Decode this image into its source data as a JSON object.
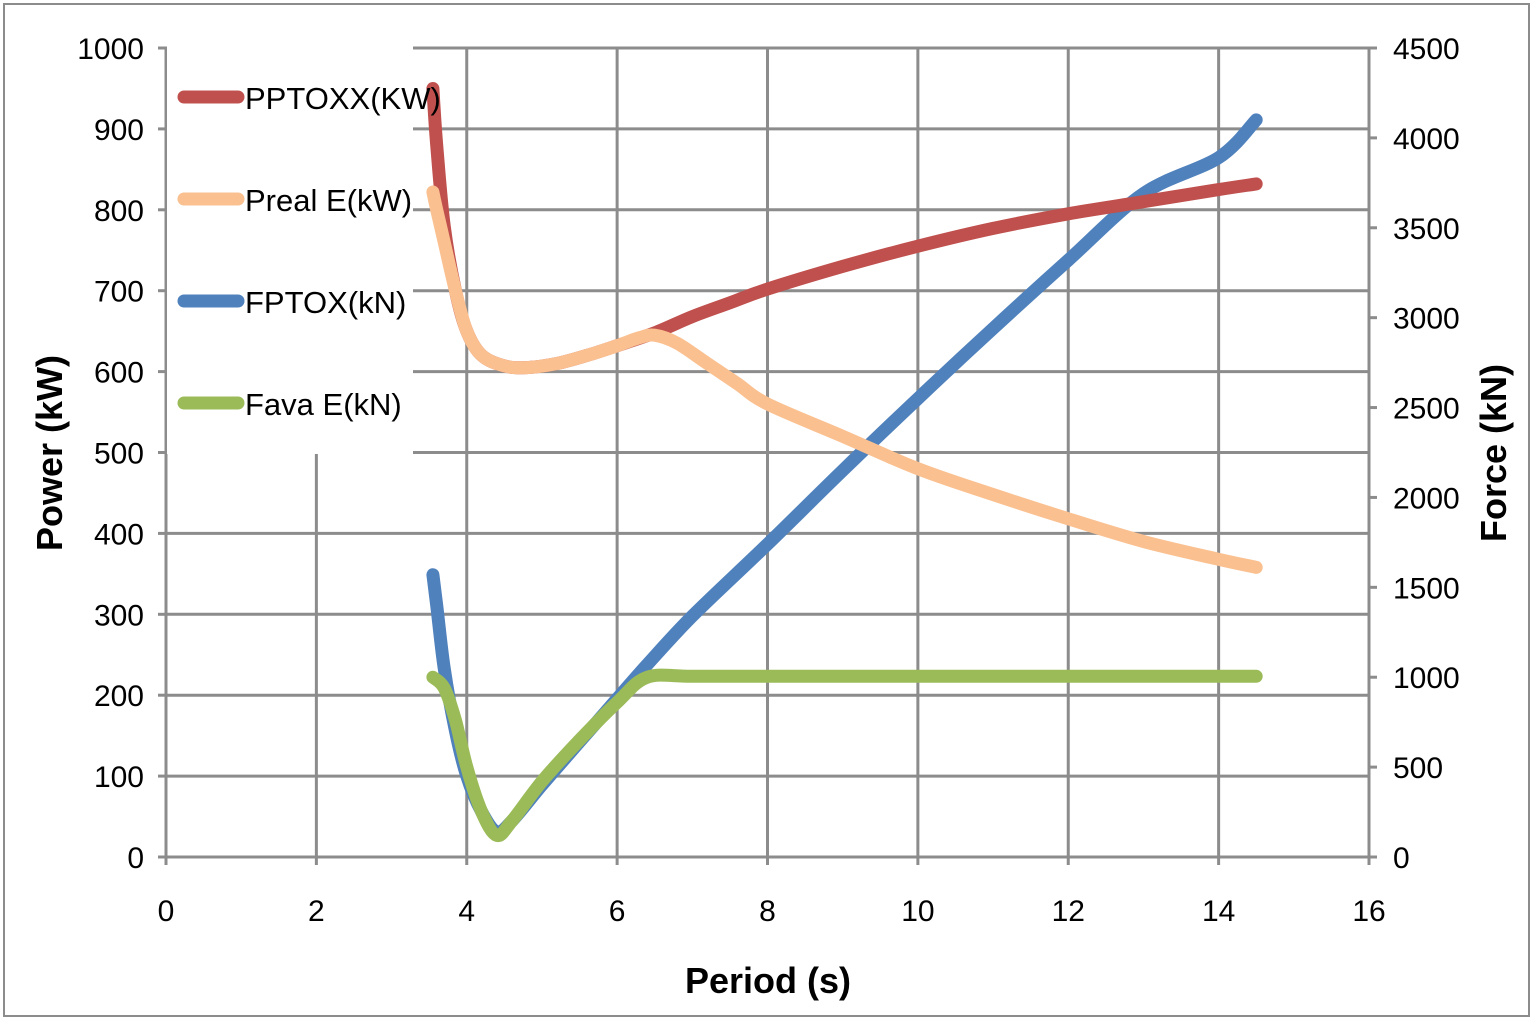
{
  "chart_data": {
    "type": "line",
    "title": "",
    "xlabel": "Period (s)",
    "ylabel_left": "Power (kW)",
    "ylabel_right": "Force (kN)",
    "xlim": [
      0,
      16
    ],
    "ylim_left": [
      0,
      1000
    ],
    "ylim_right": [
      0,
      4500
    ],
    "x_ticks": [
      "0",
      "2",
      "4",
      "6",
      "8",
      "10",
      "12",
      "14",
      "16"
    ],
    "y_ticks_left": [
      "0",
      "100",
      "200",
      "300",
      "400",
      "500",
      "600",
      "700",
      "800",
      "900",
      "1000"
    ],
    "y_ticks_right": [
      "0",
      "500",
      "1000",
      "1500",
      "2000",
      "2500",
      "3000",
      "3500",
      "4000",
      "4500"
    ],
    "grid": true,
    "legend_position": "top-left",
    "series": [
      {
        "name": "PPTOXX(KW)",
        "axis": "left",
        "color": "#c0504d",
        "points": [
          [
            3.55,
            950
          ],
          [
            3.6,
            880
          ],
          [
            3.7,
            780
          ],
          [
            3.85,
            700
          ],
          [
            4.0,
            650
          ],
          [
            4.2,
            620
          ],
          [
            4.5,
            607
          ],
          [
            4.8,
            605
          ],
          [
            5.2,
            610
          ],
          [
            5.6,
            620
          ],
          [
            6.0,
            632
          ],
          [
            6.5,
            648
          ],
          [
            7.0,
            668
          ],
          [
            7.5,
            685
          ],
          [
            8.0,
            702
          ],
          [
            9.0,
            730
          ],
          [
            10.0,
            755
          ],
          [
            11.0,
            777
          ],
          [
            12.0,
            795
          ],
          [
            13.0,
            810
          ],
          [
            14.0,
            825
          ],
          [
            14.5,
            832
          ]
        ]
      },
      {
        "name": "Preal E(kW)",
        "axis": "left",
        "color": "#fac090",
        "points": [
          [
            3.55,
            822
          ],
          [
            3.6,
            800
          ],
          [
            3.7,
            760
          ],
          [
            3.85,
            700
          ],
          [
            4.0,
            650
          ],
          [
            4.2,
            620
          ],
          [
            4.5,
            607
          ],
          [
            4.8,
            605
          ],
          [
            5.2,
            610
          ],
          [
            5.6,
            620
          ],
          [
            6.0,
            632
          ],
          [
            6.3,
            642
          ],
          [
            6.5,
            645
          ],
          [
            6.8,
            635
          ],
          [
            7.2,
            610
          ],
          [
            7.6,
            585
          ],
          [
            8.0,
            560
          ],
          [
            9.0,
            520
          ],
          [
            10.0,
            480
          ],
          [
            11.0,
            448
          ],
          [
            12.0,
            418
          ],
          [
            13.0,
            390
          ],
          [
            14.0,
            368
          ],
          [
            14.5,
            358
          ]
        ]
      },
      {
        "name": "FPTOX(kN)",
        "axis": "right",
        "color": "#4f81bd",
        "points": [
          [
            3.55,
            1570
          ],
          [
            3.6,
            1400
          ],
          [
            3.7,
            1050
          ],
          [
            3.85,
            700
          ],
          [
            4.0,
            450
          ],
          [
            4.2,
            250
          ],
          [
            4.4,
            140
          ],
          [
            4.6,
            200
          ],
          [
            5.0,
            400
          ],
          [
            5.5,
            640
          ],
          [
            6.0,
            880
          ],
          [
            6.4,
            1070
          ],
          [
            7.0,
            1340
          ],
          [
            8.0,
            1740
          ],
          [
            9.0,
            2150
          ],
          [
            10.0,
            2550
          ],
          [
            11.0,
            2940
          ],
          [
            12.0,
            3320
          ],
          [
            13.0,
            3690
          ],
          [
            14.0,
            3890
          ],
          [
            14.5,
            4100
          ]
        ]
      },
      {
        "name": "Fava E(kN)",
        "axis": "right",
        "color": "#9bbb59",
        "points": [
          [
            3.55,
            1000
          ],
          [
            3.7,
            940
          ],
          [
            3.85,
            760
          ],
          [
            4.0,
            500
          ],
          [
            4.2,
            250
          ],
          [
            4.4,
            120
          ],
          [
            4.6,
            200
          ],
          [
            5.0,
            420
          ],
          [
            5.5,
            650
          ],
          [
            6.0,
            860
          ],
          [
            6.4,
            1000
          ],
          [
            7.0,
            1005
          ],
          [
            8.0,
            1005
          ],
          [
            10.0,
            1005
          ],
          [
            12.0,
            1005
          ],
          [
            14.0,
            1005
          ],
          [
            14.5,
            1005
          ]
        ]
      }
    ]
  }
}
